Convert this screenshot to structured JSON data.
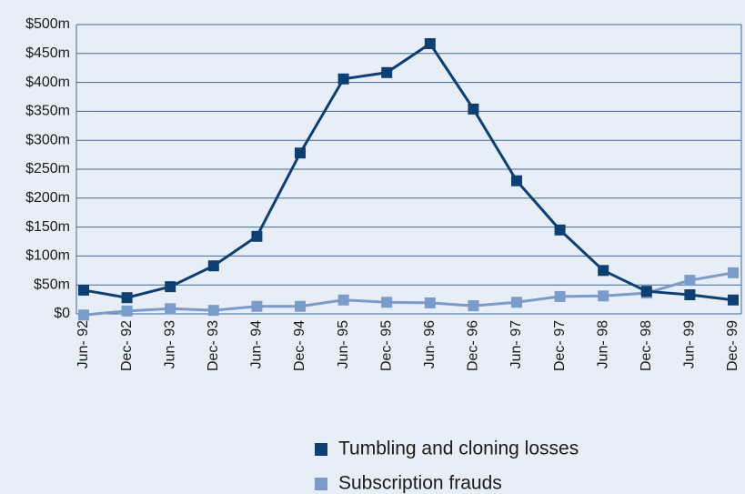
{
  "chart_data": {
    "type": "line",
    "categories": [
      "Jun- 92",
      "Dec- 92",
      "Jun- 93",
      "Dec- 93",
      "Jun- 94",
      "Dec- 94",
      "Jun- 95",
      "Dec- 95",
      "Jun- 96",
      "Dec- 96",
      "Jun- 97",
      "Dec- 97",
      "Jun- 98",
      "Dec- 98",
      "Jun- 99",
      "Dec- 99"
    ],
    "series": [
      {
        "name": "Tumbling and cloning losses",
        "color": "#0d3f73",
        "values": [
          41,
          28,
          47,
          83,
          134,
          278,
          406,
          417,
          467,
          354,
          230,
          145,
          75,
          39,
          33,
          24
        ]
      },
      {
        "name": "Subscription frauds",
        "color": "#7b9bc8",
        "values": [
          -2,
          5,
          9,
          6,
          13,
          13,
          24,
          20,
          19,
          14,
          20,
          30,
          31,
          36,
          58,
          71
        ]
      }
    ],
    "ylim": [
      0,
      500
    ],
    "yticks": [
      {
        "value": 0,
        "label": "$0"
      },
      {
        "value": 50,
        "label": "$50m"
      },
      {
        "value": 100,
        "label": "$100m"
      },
      {
        "value": 150,
        "label": "$150m"
      },
      {
        "value": 200,
        "label": "$200m"
      },
      {
        "value": 250,
        "label": "$250m"
      },
      {
        "value": 300,
        "label": "$300m"
      },
      {
        "value": 350,
        "label": "$350m"
      },
      {
        "value": 400,
        "label": "$400m"
      },
      {
        "value": 450,
        "label": "$450m"
      },
      {
        "value": 500,
        "label": "$500m"
      }
    ],
    "grid": true
  }
}
